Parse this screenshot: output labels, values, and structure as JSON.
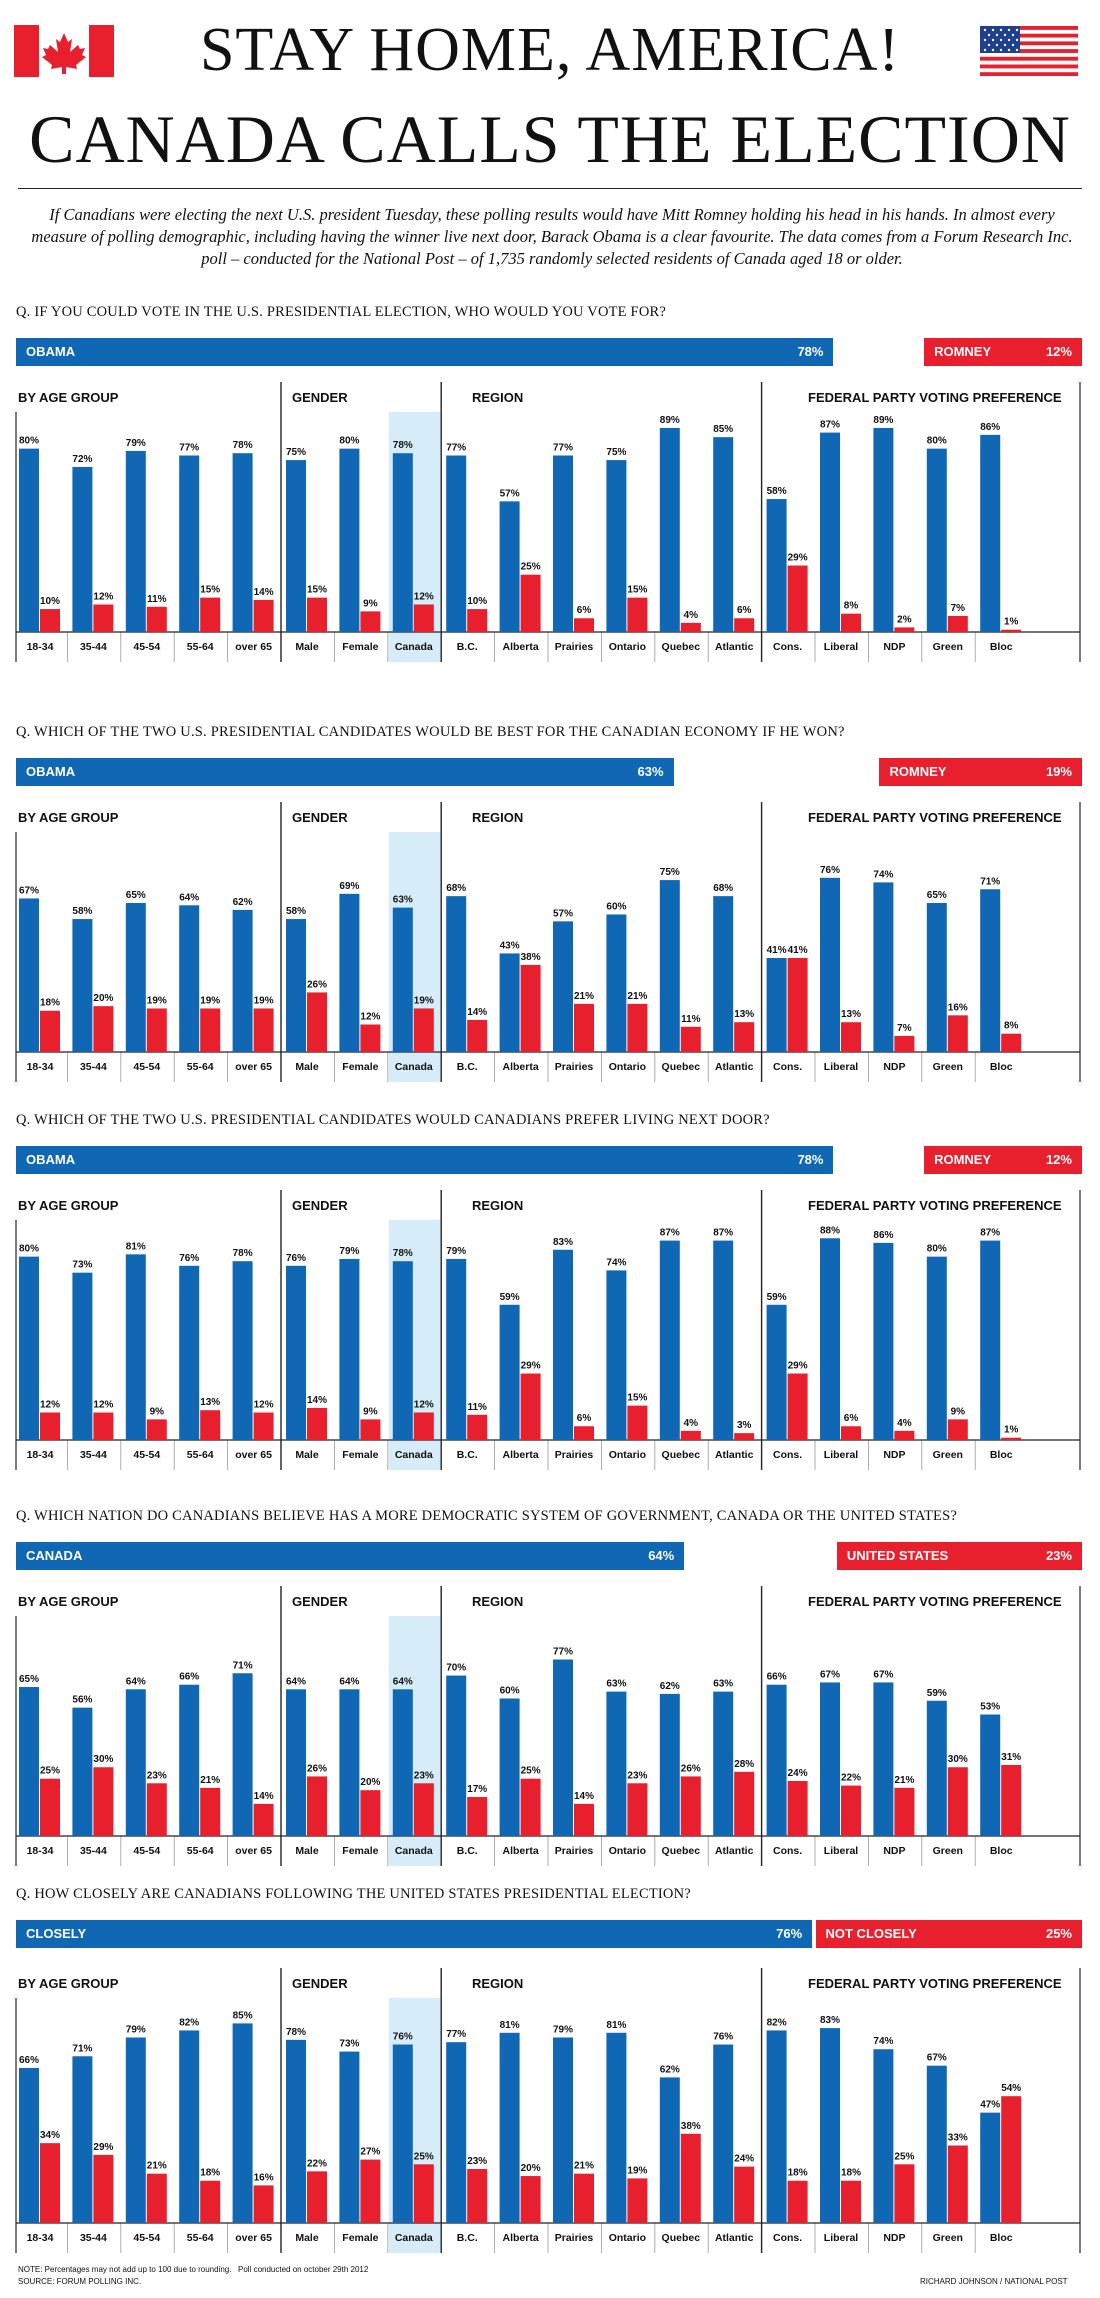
{
  "header": {
    "title_line1": "STAY HOME, AMERICA!",
    "title_line2": "CANADA CALLS THE ELECTION",
    "intro": "If Canadians were electing the next U.S. president Tuesday, these polling results would have Mitt Romney holding his head in his hands. In almost every measure of polling demographic, including having the winner live next door, Barack Obama is a clear favourite. The data comes from a Forum Research Inc. poll – conducted for the National Post – of 1,735 randomly selected residents of Canada aged 18 or older."
  },
  "colors": {
    "blue": "#1068b4",
    "red": "#e8202e",
    "highlight": "#d6ecf8"
  },
  "groups": [
    "BY AGE GROUP",
    "GENDER",
    "REGION",
    "FEDERAL PARTY VOTING PREFERENCE"
  ],
  "categories": [
    "18-34",
    "35-44",
    "45-54",
    "55-64",
    "over 65",
    "Male",
    "Female",
    "Canada",
    "B.C.",
    "Alberta",
    "Prairies",
    "Ontario",
    "Quebec",
    "Atlantic",
    "Cons.",
    "Liberal",
    "NDP",
    "Green",
    "Bloc"
  ],
  "chart_data": [
    {
      "type": "bar",
      "title": "Q. IF YOU COULD VOTE IN THE U.S. PRESIDENTIAL ELECTION, WHO WOULD YOU VOTE FOR?",
      "overall": [
        {
          "name": "OBAMA",
          "value": 78
        },
        {
          "name": "ROMNEY",
          "value": 12
        }
      ],
      "series": [
        {
          "name": "OBAMA",
          "values": [
            80,
            72,
            79,
            77,
            78,
            75,
            80,
            78,
            77,
            57,
            77,
            75,
            89,
            85,
            58,
            87,
            89,
            80,
            86
          ]
        },
        {
          "name": "ROMNEY",
          "values": [
            10,
            12,
            11,
            15,
            14,
            15,
            9,
            12,
            10,
            25,
            6,
            15,
            4,
            6,
            29,
            8,
            2,
            7,
            1
          ]
        }
      ]
    },
    {
      "type": "bar",
      "title": "Q. WHICH OF THE TWO U.S. PRESIDENTIAL CANDIDATES WOULD BE BEST FOR THE CANADIAN ECONOMY IF HE WON?",
      "overall": [
        {
          "name": "OBAMA",
          "value": 63
        },
        {
          "name": "ROMNEY",
          "value": 19
        }
      ],
      "series": [
        {
          "name": "OBAMA",
          "values": [
            67,
            58,
            65,
            64,
            62,
            58,
            69,
            63,
            68,
            43,
            57,
            60,
            75,
            68,
            41,
            76,
            74,
            65,
            71
          ]
        },
        {
          "name": "ROMNEY",
          "values": [
            18,
            20,
            19,
            19,
            19,
            26,
            12,
            19,
            14,
            38,
            21,
            21,
            11,
            13,
            41,
            13,
            7,
            16,
            8
          ]
        }
      ]
    },
    {
      "type": "bar",
      "title": "Q. WHICH OF THE TWO U.S. PRESIDENTIAL CANDIDATES WOULD CANADIANS PREFER LIVING NEXT DOOR?",
      "overall": [
        {
          "name": "OBAMA",
          "value": 78
        },
        {
          "name": "ROMNEY",
          "value": 12
        }
      ],
      "series": [
        {
          "name": "OBAMA",
          "values": [
            80,
            73,
            81,
            76,
            78,
            76,
            79,
            78,
            79,
            59,
            83,
            74,
            87,
            87,
            59,
            88,
            86,
            80,
            87
          ]
        },
        {
          "name": "ROMNEY",
          "values": [
            12,
            12,
            9,
            13,
            12,
            14,
            9,
            12,
            11,
            29,
            6,
            15,
            4,
            3,
            29,
            6,
            4,
            9,
            1
          ]
        }
      ]
    },
    {
      "type": "bar",
      "title": "Q. WHICH NATION DO CANADIANS BELIEVE HAS A MORE DEMOCRATIC SYSTEM OF GOVERNMENT, CANADA OR THE UNITED STATES?",
      "overall": [
        {
          "name": "CANADA",
          "value": 64
        },
        {
          "name": "UNITED STATES",
          "value": 23
        }
      ],
      "series": [
        {
          "name": "CANADA",
          "values": [
            65,
            56,
            64,
            66,
            71,
            64,
            64,
            64,
            70,
            60,
            77,
            63,
            62,
            63,
            66,
            67,
            67,
            59,
            53
          ]
        },
        {
          "name": "UNITED STATES",
          "values": [
            25,
            30,
            23,
            21,
            14,
            26,
            20,
            23,
            17,
            25,
            14,
            23,
            26,
            28,
            24,
            22,
            21,
            30,
            31
          ]
        }
      ]
    },
    {
      "type": "bar",
      "title": "Q. HOW CLOSELY ARE CANADIANS FOLLOWING THE UNITED STATES PRESIDENTIAL ELECTION?",
      "overall": [
        {
          "name": "CLOSELY",
          "value": 76
        },
        {
          "name": "NOT CLOSELY",
          "value": 25
        }
      ],
      "series": [
        {
          "name": "CLOSELY",
          "values": [
            66,
            71,
            79,
            82,
            85,
            78,
            73,
            76,
            77,
            81,
            79,
            81,
            62,
            76,
            82,
            83,
            74,
            67,
            47
          ]
        },
        {
          "name": "NOT CLOSELY",
          "values": [
            34,
            29,
            21,
            18,
            16,
            22,
            27,
            25,
            23,
            20,
            21,
            19,
            38,
            24,
            18,
            18,
            25,
            33,
            54
          ]
        }
      ]
    }
  ],
  "footer": {
    "note": "NOTE: Percentages may not add up to 100 due to rounding.",
    "poll_date": "Poll conducted on october 29th 2012",
    "source": "SOURCE: FORUM POLLING INC.",
    "credit": "RICHARD JOHNSON / NATIONAL POST"
  }
}
